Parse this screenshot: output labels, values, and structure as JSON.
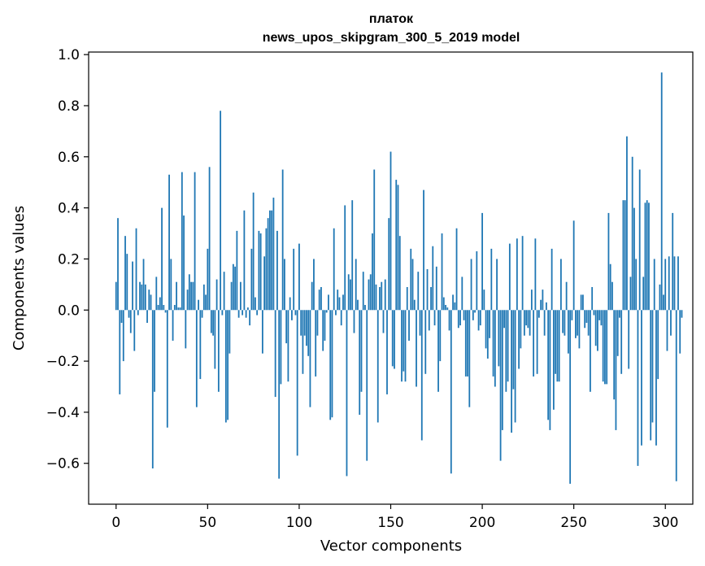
{
  "chart_data": {
    "type": "bar",
    "title": "платок",
    "subtitle": "news_upos_skipgram_300_5_2019 model",
    "xlabel": "Vector components",
    "ylabel": "Components values",
    "xlim": [
      -15,
      315
    ],
    "ylim": [
      -0.76,
      1.01
    ],
    "xticks": [
      0,
      50,
      100,
      150,
      200,
      250,
      300
    ],
    "xtick_labels": [
      "0",
      "50",
      "100",
      "150",
      "200",
      "250",
      "300"
    ],
    "yticks": [
      -0.6,
      -0.4,
      -0.2,
      0.0,
      0.2,
      0.4,
      0.6,
      0.8,
      1.0
    ],
    "ytick_labels": [
      "−0.6",
      "−0.4",
      "−0.2",
      "0.0",
      "0.2",
      "0.4",
      "0.6",
      "0.8",
      "1.0"
    ],
    "bar_color": "#1f77b4",
    "grid": false,
    "values": [
      0.11,
      0.36,
      -0.33,
      -0.05,
      -0.2,
      0.29,
      0.22,
      -0.03,
      -0.09,
      0.19,
      -0.16,
      0.32,
      -0.02,
      0.11,
      0.1,
      0.2,
      0.1,
      -0.05,
      0.08,
      0.06,
      -0.62,
      -0.32,
      0.13,
      0.02,
      0.05,
      0.4,
      0.02,
      -0.01,
      -0.46,
      0.53,
      0.2,
      -0.12,
      0.02,
      0.11,
      0.01,
      0.01,
      0.54,
      0.37,
      -0.15,
      0.08,
      0.14,
      0.11,
      0.11,
      0.54,
      -0.38,
      0.04,
      -0.27,
      -0.03,
      0.1,
      0.06,
      0.24,
      0.56,
      -0.09,
      -0.1,
      -0.23,
      0.12,
      -0.32,
      0.78,
      -0.02,
      0.15,
      -0.44,
      -0.43,
      -0.17,
      0.11,
      0.18,
      0.17,
      0.31,
      -0.03,
      0.11,
      -0.02,
      0.39,
      -0.03,
      0.01,
      -0.06,
      0.24,
      0.46,
      0.05,
      -0.02,
      0.31,
      0.3,
      -0.17,
      0.21,
      0.32,
      0.36,
      0.39,
      0.39,
      0.44,
      -0.34,
      0.31,
      -0.66,
      -0.29,
      0.55,
      0.2,
      -0.13,
      -0.28,
      0.05,
      -0.04,
      0.24,
      -0.02,
      -0.57,
      0.26,
      -0.1,
      -0.25,
      -0.1,
      -0.14,
      -0.18,
      -0.38,
      0.11,
      0.2,
      -0.26,
      -0.1,
      0.08,
      0.09,
      -0.16,
      -0.12,
      -0.01,
      0.06,
      -0.43,
      -0.42,
      0.32,
      -0.02,
      0.08,
      0.05,
      -0.06,
      0.06,
      0.41,
      -0.65,
      0.14,
      0.12,
      0.43,
      -0.09,
      0.2,
      0.04,
      -0.41,
      -0.32,
      0.15,
      0.02,
      -0.59,
      0.12,
      0.14,
      0.3,
      0.55,
      0.1,
      -0.44,
      0.09,
      0.11,
      -0.09,
      0.12,
      -0.33,
      0.36,
      0.62,
      -0.22,
      -0.23,
      0.51,
      0.49,
      0.29,
      -0.28,
      -0.24,
      -0.28,
      0.09,
      -0.12,
      0.24,
      0.2,
      0.04,
      -0.3,
      0.15,
      -0.1,
      -0.51,
      0.47,
      -0.25,
      0.16,
      -0.08,
      0.09,
      0.25,
      -0.06,
      0.17,
      -0.32,
      -0.2,
      0.3,
      0.05,
      0.02,
      0.01,
      -0.08,
      -0.64,
      0.06,
      0.03,
      0.32,
      -0.07,
      -0.06,
      0.13,
      -0.04,
      -0.26,
      -0.26,
      -0.38,
      0.2,
      -0.04,
      -0.01,
      0.23,
      -0.08,
      -0.06,
      0.38,
      0.08,
      -0.15,
      -0.19,
      -0.11,
      0.24,
      -0.26,
      -0.3,
      0.2,
      -0.22,
      -0.59,
      -0.47,
      -0.07,
      -0.32,
      -0.28,
      0.26,
      -0.48,
      -0.31,
      -0.44,
      0.28,
      -0.23,
      -0.15,
      0.29,
      -0.1,
      -0.06,
      -0.07,
      -0.1,
      0.08,
      -0.26,
      0.28,
      -0.25,
      -0.03,
      0.04,
      0.08,
      -0.1,
      0.03,
      -0.43,
      -0.47,
      0.24,
      -0.39,
      -0.25,
      -0.28,
      -0.28,
      0.2,
      -0.09,
      -0.1,
      0.11,
      -0.17,
      -0.68,
      -0.04,
      0.35,
      -0.11,
      -0.1,
      -0.15,
      0.06,
      0.06,
      -0.07,
      -0.05,
      -0.1,
      -0.32,
      0.09,
      -0.02,
      -0.14,
      -0.16,
      -0.04,
      -0.06,
      -0.28,
      -0.29,
      -0.29,
      0.38,
      0.18,
      0.11,
      -0.35,
      -0.47,
      -0.18,
      -0.03,
      -0.25,
      0.43,
      0.43,
      0.68,
      -0.23,
      0.13,
      0.6,
      0.4,
      0.2,
      -0.61,
      0.55,
      -0.53,
      0.13,
      0.42,
      0.43,
      0.42,
      -0.51,
      -0.44,
      0.2,
      -0.53,
      -0.27,
      0.1,
      0.93,
      0.06,
      0.2,
      -0.16,
      0.21,
      -0.1,
      0.38,
      0.21,
      -0.67,
      0.21,
      -0.17,
      -0.03
    ]
  }
}
